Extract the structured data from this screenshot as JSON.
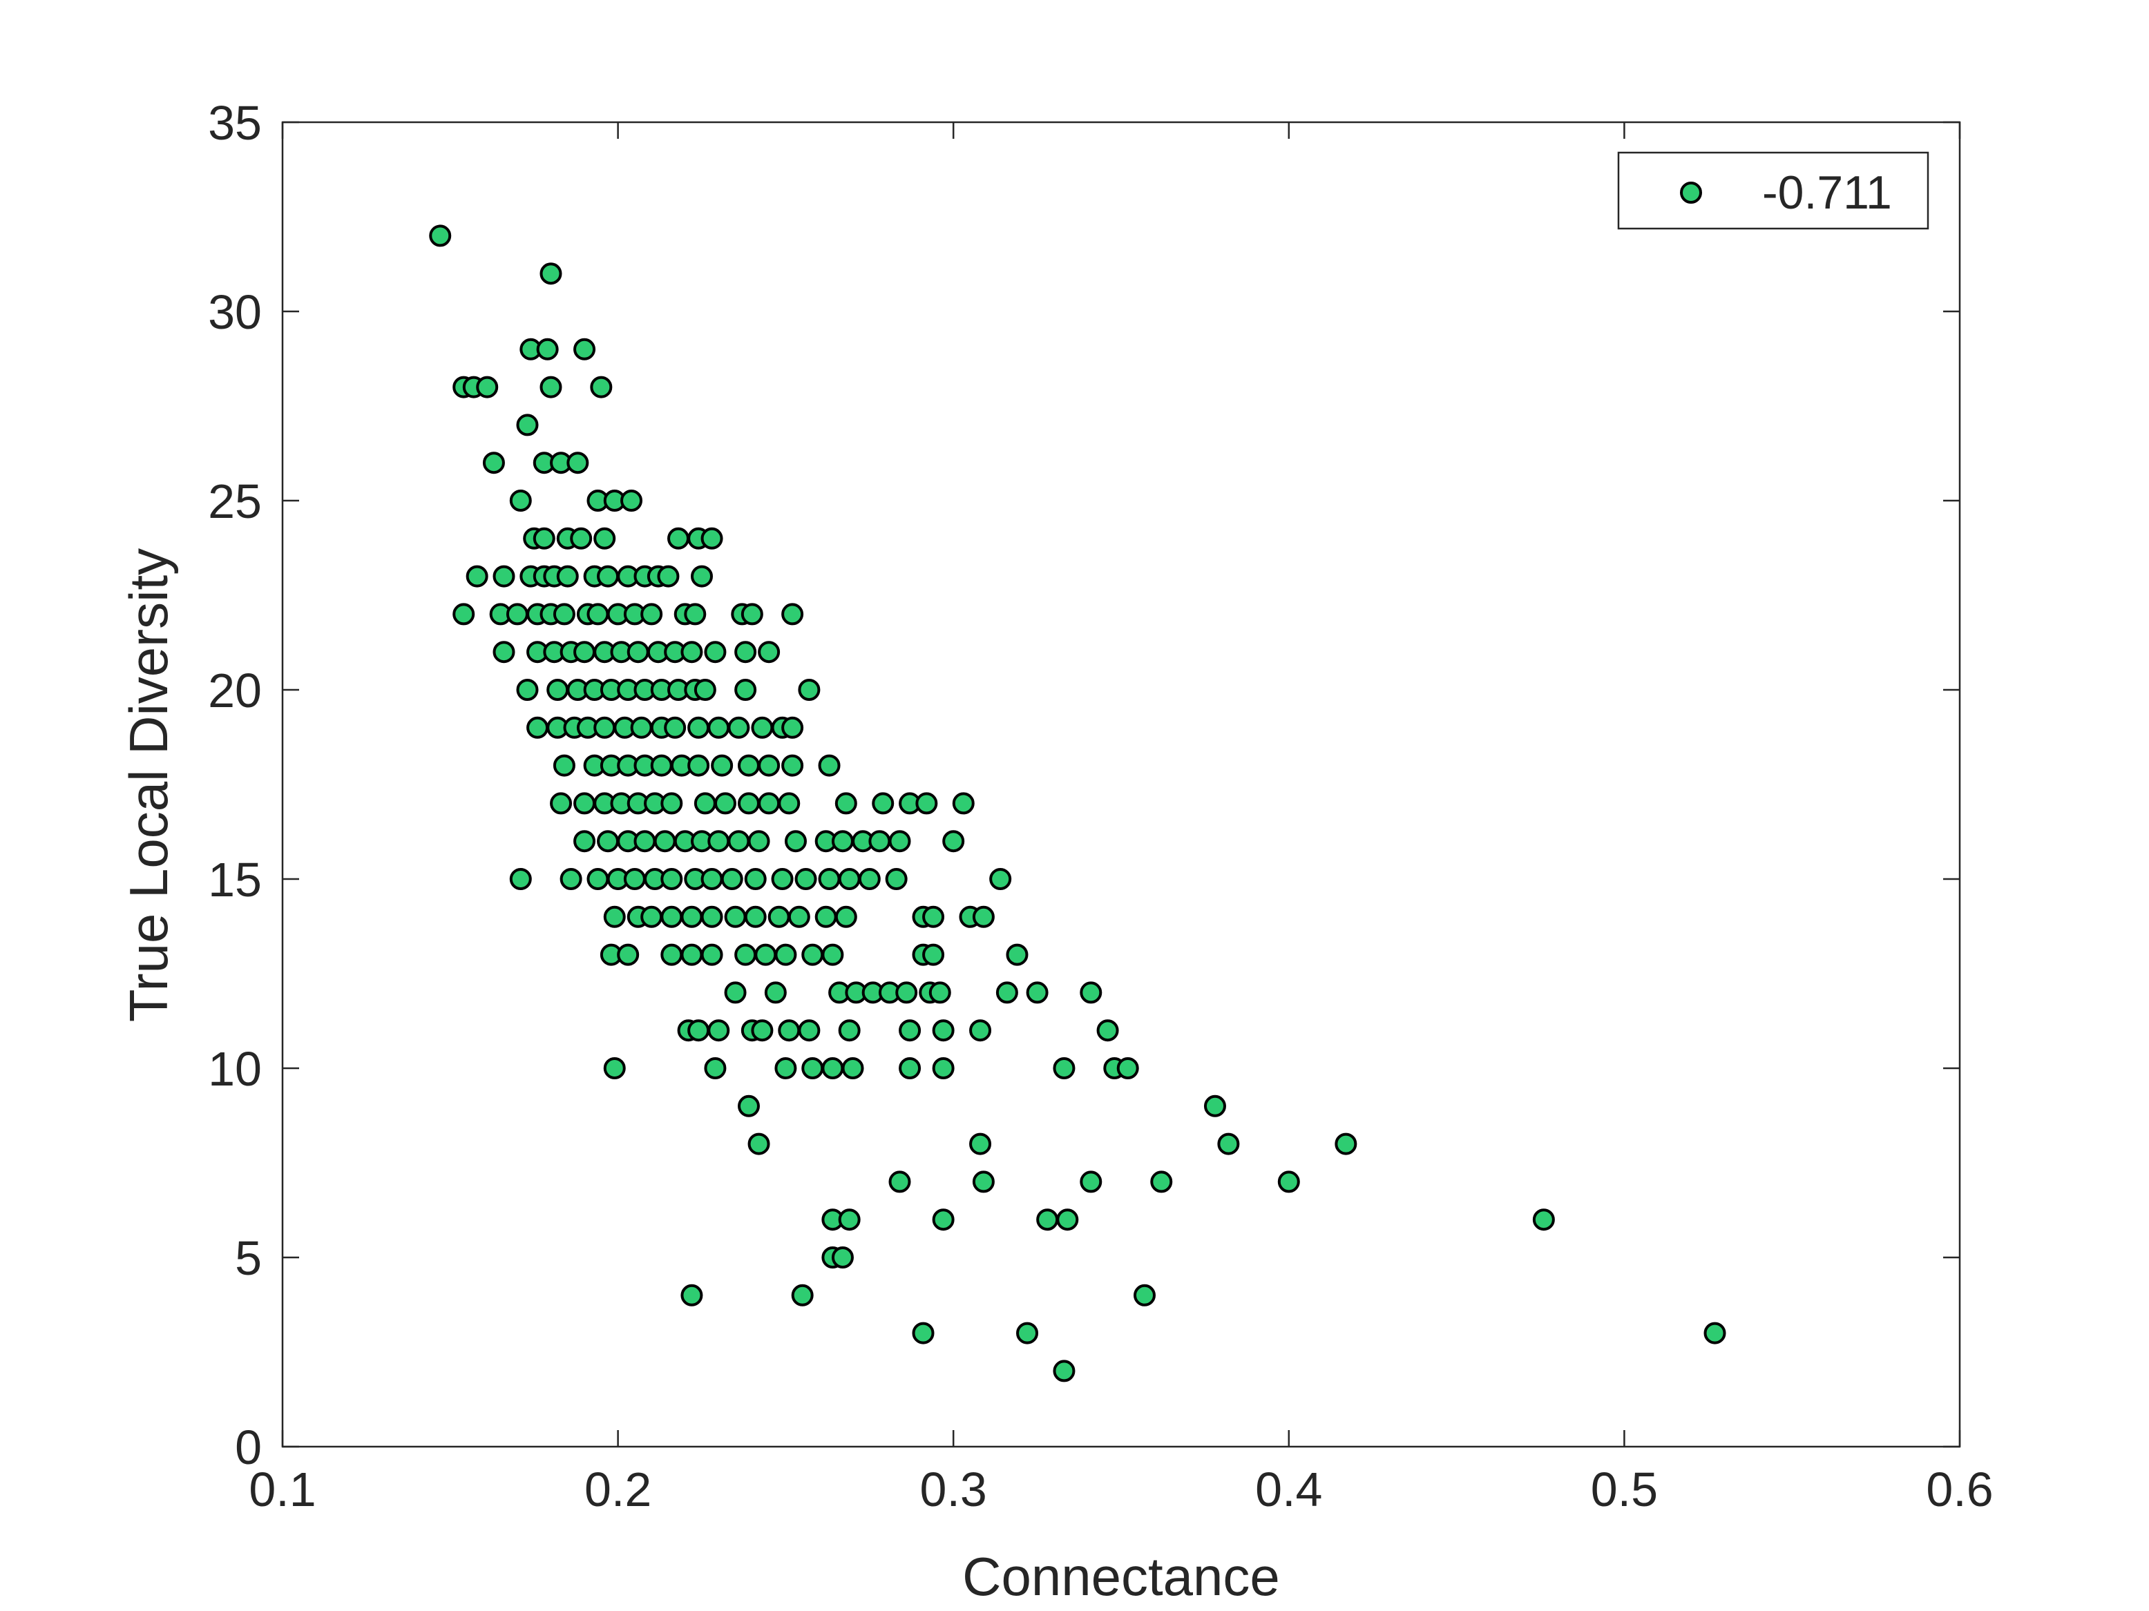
{
  "chart_data": {
    "type": "scatter",
    "xlabel": "Connectance",
    "ylabel": "True Local Diversity",
    "xlim": [
      0.1,
      0.6
    ],
    "ylim": [
      0,
      35
    ],
    "xticks": [
      "0.1",
      "0.2",
      "0.3",
      "0.4",
      "0.5",
      "0.6"
    ],
    "yticks": [
      "0",
      "5",
      "10",
      "15",
      "20",
      "25",
      "30",
      "35"
    ],
    "grid": false,
    "legend": {
      "placement": "top-right",
      "entries": [
        "-0.711"
      ]
    },
    "series": [
      {
        "name": "-0.711",
        "color": "#2ecc71",
        "points": [
          [
            0.147,
            32
          ],
          [
            0.18,
            31
          ],
          [
            0.174,
            29
          ],
          [
            0.179,
            29
          ],
          [
            0.19,
            29
          ],
          [
            0.154,
            28
          ],
          [
            0.157,
            28
          ],
          [
            0.161,
            28
          ],
          [
            0.18,
            28
          ],
          [
            0.195,
            28
          ],
          [
            0.173,
            27
          ],
          [
            0.163,
            26
          ],
          [
            0.178,
            26
          ],
          [
            0.183,
            26
          ],
          [
            0.188,
            26
          ],
          [
            0.171,
            25
          ],
          [
            0.194,
            25
          ],
          [
            0.199,
            25
          ],
          [
            0.204,
            25
          ],
          [
            0.175,
            24
          ],
          [
            0.178,
            24
          ],
          [
            0.185,
            24
          ],
          [
            0.189,
            24
          ],
          [
            0.196,
            24
          ],
          [
            0.218,
            24
          ],
          [
            0.224,
            24
          ],
          [
            0.228,
            24
          ],
          [
            0.158,
            23
          ],
          [
            0.166,
            23
          ],
          [
            0.174,
            23
          ],
          [
            0.178,
            23
          ],
          [
            0.181,
            23
          ],
          [
            0.185,
            23
          ],
          [
            0.193,
            23
          ],
          [
            0.197,
            23
          ],
          [
            0.203,
            23
          ],
          [
            0.208,
            23
          ],
          [
            0.212,
            23
          ],
          [
            0.215,
            23
          ],
          [
            0.225,
            23
          ],
          [
            0.154,
            22
          ],
          [
            0.165,
            22
          ],
          [
            0.17,
            22
          ],
          [
            0.176,
            22
          ],
          [
            0.18,
            22
          ],
          [
            0.184,
            22
          ],
          [
            0.191,
            22
          ],
          [
            0.194,
            22
          ],
          [
            0.2,
            22
          ],
          [
            0.205,
            22
          ],
          [
            0.21,
            22
          ],
          [
            0.22,
            22
          ],
          [
            0.223,
            22
          ],
          [
            0.237,
            22
          ],
          [
            0.24,
            22
          ],
          [
            0.252,
            22
          ],
          [
            0.166,
            21
          ],
          [
            0.176,
            21
          ],
          [
            0.181,
            21
          ],
          [
            0.186,
            21
          ],
          [
            0.19,
            21
          ],
          [
            0.196,
            21
          ],
          [
            0.201,
            21
          ],
          [
            0.206,
            21
          ],
          [
            0.212,
            21
          ],
          [
            0.217,
            21
          ],
          [
            0.222,
            21
          ],
          [
            0.229,
            21
          ],
          [
            0.238,
            21
          ],
          [
            0.245,
            21
          ],
          [
            0.173,
            20
          ],
          [
            0.182,
            20
          ],
          [
            0.188,
            20
          ],
          [
            0.193,
            20
          ],
          [
            0.198,
            20
          ],
          [
            0.203,
            20
          ],
          [
            0.208,
            20
          ],
          [
            0.213,
            20
          ],
          [
            0.218,
            20
          ],
          [
            0.223,
            20
          ],
          [
            0.226,
            20
          ],
          [
            0.238,
            20
          ],
          [
            0.257,
            20
          ],
          [
            0.176,
            19
          ],
          [
            0.182,
            19
          ],
          [
            0.187,
            19
          ],
          [
            0.191,
            19
          ],
          [
            0.196,
            19
          ],
          [
            0.202,
            19
          ],
          [
            0.207,
            19
          ],
          [
            0.213,
            19
          ],
          [
            0.217,
            19
          ],
          [
            0.224,
            19
          ],
          [
            0.23,
            19
          ],
          [
            0.236,
            19
          ],
          [
            0.243,
            19
          ],
          [
            0.249,
            19
          ],
          [
            0.252,
            19
          ],
          [
            0.184,
            18
          ],
          [
            0.193,
            18
          ],
          [
            0.198,
            18
          ],
          [
            0.203,
            18
          ],
          [
            0.208,
            18
          ],
          [
            0.213,
            18
          ],
          [
            0.219,
            18
          ],
          [
            0.224,
            18
          ],
          [
            0.231,
            18
          ],
          [
            0.239,
            18
          ],
          [
            0.245,
            18
          ],
          [
            0.252,
            18
          ],
          [
            0.263,
            18
          ],
          [
            0.183,
            17
          ],
          [
            0.19,
            17
          ],
          [
            0.196,
            17
          ],
          [
            0.201,
            17
          ],
          [
            0.206,
            17
          ],
          [
            0.211,
            17
          ],
          [
            0.216,
            17
          ],
          [
            0.226,
            17
          ],
          [
            0.232,
            17
          ],
          [
            0.239,
            17
          ],
          [
            0.245,
            17
          ],
          [
            0.251,
            17
          ],
          [
            0.268,
            17
          ],
          [
            0.279,
            17
          ],
          [
            0.287,
            17
          ],
          [
            0.292,
            17
          ],
          [
            0.303,
            17
          ],
          [
            0.19,
            16
          ],
          [
            0.197,
            16
          ],
          [
            0.203,
            16
          ],
          [
            0.208,
            16
          ],
          [
            0.214,
            16
          ],
          [
            0.22,
            16
          ],
          [
            0.225,
            16
          ],
          [
            0.23,
            16
          ],
          [
            0.236,
            16
          ],
          [
            0.242,
            16
          ],
          [
            0.253,
            16
          ],
          [
            0.262,
            16
          ],
          [
            0.267,
            16
          ],
          [
            0.273,
            16
          ],
          [
            0.278,
            16
          ],
          [
            0.284,
            16
          ],
          [
            0.3,
            16
          ],
          [
            0.171,
            15
          ],
          [
            0.186,
            15
          ],
          [
            0.194,
            15
          ],
          [
            0.2,
            15
          ],
          [
            0.205,
            15
          ],
          [
            0.211,
            15
          ],
          [
            0.216,
            15
          ],
          [
            0.223,
            15
          ],
          [
            0.228,
            15
          ],
          [
            0.234,
            15
          ],
          [
            0.241,
            15
          ],
          [
            0.249,
            15
          ],
          [
            0.256,
            15
          ],
          [
            0.263,
            15
          ],
          [
            0.269,
            15
          ],
          [
            0.275,
            15
          ],
          [
            0.283,
            15
          ],
          [
            0.314,
            15
          ],
          [
            0.199,
            14
          ],
          [
            0.206,
            14
          ],
          [
            0.21,
            14
          ],
          [
            0.216,
            14
          ],
          [
            0.222,
            14
          ],
          [
            0.228,
            14
          ],
          [
            0.235,
            14
          ],
          [
            0.241,
            14
          ],
          [
            0.248,
            14
          ],
          [
            0.254,
            14
          ],
          [
            0.262,
            14
          ],
          [
            0.268,
            14
          ],
          [
            0.291,
            14
          ],
          [
            0.294,
            14
          ],
          [
            0.305,
            14
          ],
          [
            0.309,
            14
          ],
          [
            0.198,
            13
          ],
          [
            0.203,
            13
          ],
          [
            0.216,
            13
          ],
          [
            0.222,
            13
          ],
          [
            0.228,
            13
          ],
          [
            0.238,
            13
          ],
          [
            0.244,
            13
          ],
          [
            0.25,
            13
          ],
          [
            0.258,
            13
          ],
          [
            0.264,
            13
          ],
          [
            0.291,
            13
          ],
          [
            0.294,
            13
          ],
          [
            0.319,
            13
          ],
          [
            0.235,
            12
          ],
          [
            0.247,
            12
          ],
          [
            0.266,
            12
          ],
          [
            0.271,
            12
          ],
          [
            0.276,
            12
          ],
          [
            0.281,
            12
          ],
          [
            0.286,
            12
          ],
          [
            0.293,
            12
          ],
          [
            0.296,
            12
          ],
          [
            0.316,
            12
          ],
          [
            0.325,
            12
          ],
          [
            0.341,
            12
          ],
          [
            0.221,
            11
          ],
          [
            0.224,
            11
          ],
          [
            0.23,
            11
          ],
          [
            0.24,
            11
          ],
          [
            0.243,
            11
          ],
          [
            0.251,
            11
          ],
          [
            0.257,
            11
          ],
          [
            0.269,
            11
          ],
          [
            0.287,
            11
          ],
          [
            0.297,
            11
          ],
          [
            0.308,
            11
          ],
          [
            0.346,
            11
          ],
          [
            0.199,
            10
          ],
          [
            0.229,
            10
          ],
          [
            0.25,
            10
          ],
          [
            0.258,
            10
          ],
          [
            0.264,
            10
          ],
          [
            0.27,
            10
          ],
          [
            0.287,
            10
          ],
          [
            0.297,
            10
          ],
          [
            0.333,
            10
          ],
          [
            0.348,
            10
          ],
          [
            0.352,
            10
          ],
          [
            0.239,
            9
          ],
          [
            0.378,
            9
          ],
          [
            0.242,
            8
          ],
          [
            0.308,
            8
          ],
          [
            0.382,
            8
          ],
          [
            0.417,
            8
          ],
          [
            0.284,
            7
          ],
          [
            0.309,
            7
          ],
          [
            0.341,
            7
          ],
          [
            0.362,
            7
          ],
          [
            0.4,
            7
          ],
          [
            0.264,
            6
          ],
          [
            0.269,
            6
          ],
          [
            0.297,
            6
          ],
          [
            0.328,
            6
          ],
          [
            0.334,
            6
          ],
          [
            0.476,
            6
          ],
          [
            0.264,
            5
          ],
          [
            0.267,
            5
          ],
          [
            0.222,
            4
          ],
          [
            0.255,
            4
          ],
          [
            0.357,
            4
          ],
          [
            0.291,
            3
          ],
          [
            0.322,
            3
          ],
          [
            0.527,
            3
          ],
          [
            0.333,
            2
          ]
        ]
      }
    ]
  }
}
